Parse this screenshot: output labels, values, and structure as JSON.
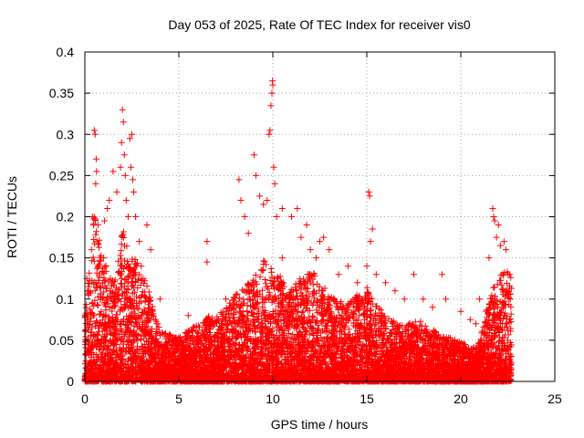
{
  "chart_data": {
    "type": "scatter",
    "title": "Day 053 of 2025, Rate Of TEC Index for receiver vis0",
    "xlabel": "GPS time / hours",
    "ylabel": "ROTI / TECUs",
    "xlim": [
      0,
      25
    ],
    "ylim": [
      0,
      0.4
    ],
    "xticks": [
      0,
      5,
      10,
      15,
      20,
      25
    ],
    "yticks": [
      0,
      0.05,
      0.1,
      0.15,
      0.2,
      0.25,
      0.3,
      0.35,
      0.4
    ],
    "xtick_labels": [
      "0",
      "5",
      "10",
      "15",
      "20",
      "25"
    ],
    "ytick_labels": [
      "0",
      "0.05",
      "0.1",
      "0.15",
      "0.2",
      "0.25",
      "0.3",
      "0.35",
      "0.4"
    ],
    "grid": true,
    "marker": "+",
    "color": "#ff0000",
    "x_range_of_data": [
      0,
      22.7
    ],
    "envelope": [
      [
        0.0,
        0.08
      ],
      [
        0.3,
        0.14
      ],
      [
        0.5,
        0.2
      ],
      [
        0.7,
        0.17
      ],
      [
        1.0,
        0.14
      ],
      [
        1.3,
        0.13
      ],
      [
        1.6,
        0.12
      ],
      [
        2.0,
        0.18
      ],
      [
        2.4,
        0.15
      ],
      [
        2.8,
        0.14
      ],
      [
        3.2,
        0.12
      ],
      [
        3.6,
        0.09
      ],
      [
        4.0,
        0.06
      ],
      [
        4.5,
        0.055
      ],
      [
        5.0,
        0.05
      ],
      [
        5.5,
        0.06
      ],
      [
        6.0,
        0.065
      ],
      [
        6.5,
        0.075
      ],
      [
        7.0,
        0.075
      ],
      [
        7.5,
        0.085
      ],
      [
        8.0,
        0.1
      ],
      [
        8.5,
        0.11
      ],
      [
        9.0,
        0.12
      ],
      [
        9.5,
        0.14
      ],
      [
        10.0,
        0.13
      ],
      [
        10.5,
        0.12
      ],
      [
        11.0,
        0.11
      ],
      [
        11.5,
        0.12
      ],
      [
        12.0,
        0.13
      ],
      [
        12.5,
        0.12
      ],
      [
        13.0,
        0.1
      ],
      [
        13.5,
        0.095
      ],
      [
        14.0,
        0.09
      ],
      [
        14.5,
        0.1
      ],
      [
        15.0,
        0.11
      ],
      [
        15.5,
        0.09
      ],
      [
        16.0,
        0.075
      ],
      [
        16.5,
        0.07
      ],
      [
        17.0,
        0.065
      ],
      [
        17.5,
        0.07
      ],
      [
        18.0,
        0.07
      ],
      [
        18.5,
        0.06
      ],
      [
        19.0,
        0.055
      ],
      [
        19.5,
        0.05
      ],
      [
        20.0,
        0.045
      ],
      [
        20.5,
        0.04
      ],
      [
        21.0,
        0.045
      ],
      [
        21.5,
        0.1
      ],
      [
        22.0,
        0.12
      ],
      [
        22.4,
        0.13
      ],
      [
        22.7,
        0.12
      ]
    ],
    "points": [
      [
        0.5,
        0.305
      ],
      [
        0.55,
        0.3
      ],
      [
        0.6,
        0.27
      ],
      [
        0.62,
        0.255
      ],
      [
        0.58,
        0.24
      ],
      [
        0.4,
        0.2
      ],
      [
        0.35,
        0.16
      ],
      [
        0.7,
        0.19
      ],
      [
        1.05,
        0.195
      ],
      [
        1.2,
        0.21
      ],
      [
        1.3,
        0.22
      ],
      [
        1.5,
        0.255
      ],
      [
        1.7,
        0.23
      ],
      [
        1.9,
        0.26
      ],
      [
        1.95,
        0.29
      ],
      [
        2.0,
        0.33
      ],
      [
        2.05,
        0.315
      ],
      [
        2.1,
        0.275
      ],
      [
        2.15,
        0.25
      ],
      [
        2.2,
        0.22
      ],
      [
        2.3,
        0.2
      ],
      [
        2.4,
        0.295
      ],
      [
        2.5,
        0.3
      ],
      [
        2.45,
        0.26
      ],
      [
        2.55,
        0.245
      ],
      [
        2.6,
        0.23
      ],
      [
        2.7,
        0.2
      ],
      [
        2.9,
        0.17
      ],
      [
        3.3,
        0.19
      ],
      [
        3.5,
        0.16
      ],
      [
        6.5,
        0.17
      ],
      [
        6.5,
        0.145
      ],
      [
        8.2,
        0.245
      ],
      [
        8.3,
        0.22
      ],
      [
        8.5,
        0.2
      ],
      [
        8.7,
        0.18
      ],
      [
        9.0,
        0.275
      ],
      [
        9.1,
        0.25
      ],
      [
        9.3,
        0.225
      ],
      [
        9.5,
        0.215
      ],
      [
        9.7,
        0.22
      ],
      [
        9.8,
        0.3
      ],
      [
        9.85,
        0.305
      ],
      [
        9.9,
        0.335
      ],
      [
        9.95,
        0.35
      ],
      [
        10.0,
        0.36
      ],
      [
        9.98,
        0.365
      ],
      [
        10.05,
        0.26
      ],
      [
        10.1,
        0.24
      ],
      [
        10.2,
        0.2
      ],
      [
        10.5,
        0.21
      ],
      [
        11.0,
        0.2
      ],
      [
        11.3,
        0.21
      ],
      [
        11.5,
        0.175
      ],
      [
        11.8,
        0.19
      ],
      [
        12.0,
        0.16
      ],
      [
        12.5,
        0.17
      ],
      [
        12.7,
        0.175
      ],
      [
        13.0,
        0.16
      ],
      [
        14.0,
        0.14
      ],
      [
        15.1,
        0.23
      ],
      [
        15.15,
        0.225
      ],
      [
        15.3,
        0.185
      ],
      [
        15.2,
        0.17
      ],
      [
        15.0,
        0.14
      ],
      [
        15.5,
        0.13
      ],
      [
        16.0,
        0.12
      ],
      [
        17.5,
        0.13
      ],
      [
        18.0,
        0.1
      ],
      [
        19.0,
        0.13
      ],
      [
        19.2,
        0.1
      ],
      [
        20.0,
        0.085
      ],
      [
        20.5,
        0.075
      ],
      [
        21.0,
        0.1
      ],
      [
        21.5,
        0.15
      ],
      [
        21.7,
        0.21
      ],
      [
        21.75,
        0.2
      ],
      [
        21.8,
        0.195
      ],
      [
        21.9,
        0.175
      ],
      [
        22.0,
        0.19
      ],
      [
        22.1,
        0.165
      ],
      [
        22.3,
        0.17
      ],
      [
        22.4,
        0.16
      ],
      [
        22.6,
        0.13
      ],
      [
        0.1,
        0.125
      ],
      [
        0.2,
        0.11
      ],
      [
        1.0,
        0.15
      ],
      [
        3.0,
        0.14
      ],
      [
        4.0,
        0.1
      ],
      [
        5.5,
        0.08
      ],
      [
        7.5,
        0.1
      ],
      [
        10.5,
        0.15
      ],
      [
        12.3,
        0.15
      ],
      [
        13.5,
        0.13
      ],
      [
        14.5,
        0.12
      ],
      [
        16.5,
        0.11
      ],
      [
        17.0,
        0.1
      ],
      [
        18.5,
        0.09
      ],
      [
        20.8,
        0.07
      ]
    ]
  }
}
